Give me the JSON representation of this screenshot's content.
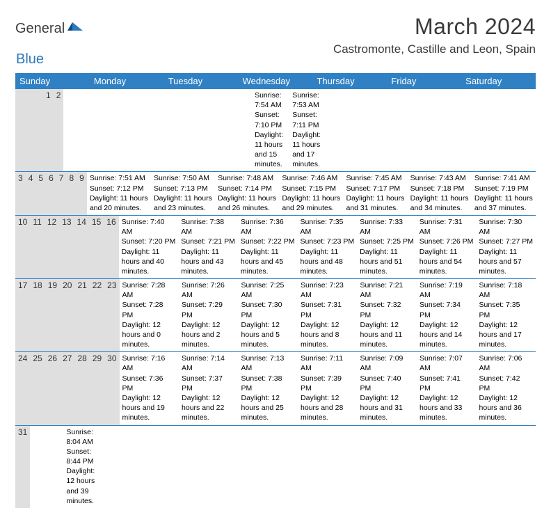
{
  "logo": {
    "text1": "General",
    "text2": "Blue"
  },
  "title": "March 2024",
  "location": "Castromonte, Castille and Leon, Spain",
  "colors": {
    "header_bg": "#3081c4",
    "header_text": "#ffffff",
    "daynum_bg": "#dfdfdf",
    "row_border": "#3081c4",
    "text": "#222222",
    "logo_gray": "#3d3d3d",
    "logo_blue": "#2f78b9"
  },
  "typography": {
    "title_fontsize": 32,
    "location_fontsize": 17,
    "dayheader_fontsize": 13,
    "daynum_fontsize": 12,
    "body_fontsize": 10.5
  },
  "day_names": [
    "Sunday",
    "Monday",
    "Tuesday",
    "Wednesday",
    "Thursday",
    "Friday",
    "Saturday"
  ],
  "weeks": [
    [
      {
        "n": "",
        "lines": []
      },
      {
        "n": "",
        "lines": []
      },
      {
        "n": "",
        "lines": []
      },
      {
        "n": "",
        "lines": []
      },
      {
        "n": "",
        "lines": []
      },
      {
        "n": "1",
        "lines": [
          "Sunrise: 7:54 AM",
          "Sunset: 7:10 PM",
          "Daylight: 11 hours and 15 minutes."
        ]
      },
      {
        "n": "2",
        "lines": [
          "Sunrise: 7:53 AM",
          "Sunset: 7:11 PM",
          "Daylight: 11 hours and 17 minutes."
        ]
      }
    ],
    [
      {
        "n": "3",
        "lines": [
          "Sunrise: 7:51 AM",
          "Sunset: 7:12 PM",
          "Daylight: 11 hours and 20 minutes."
        ]
      },
      {
        "n": "4",
        "lines": [
          "Sunrise: 7:50 AM",
          "Sunset: 7:13 PM",
          "Daylight: 11 hours and 23 minutes."
        ]
      },
      {
        "n": "5",
        "lines": [
          "Sunrise: 7:48 AM",
          "Sunset: 7:14 PM",
          "Daylight: 11 hours and 26 minutes."
        ]
      },
      {
        "n": "6",
        "lines": [
          "Sunrise: 7:46 AM",
          "Sunset: 7:15 PM",
          "Daylight: 11 hours and 29 minutes."
        ]
      },
      {
        "n": "7",
        "lines": [
          "Sunrise: 7:45 AM",
          "Sunset: 7:17 PM",
          "Daylight: 11 hours and 31 minutes."
        ]
      },
      {
        "n": "8",
        "lines": [
          "Sunrise: 7:43 AM",
          "Sunset: 7:18 PM",
          "Daylight: 11 hours and 34 minutes."
        ]
      },
      {
        "n": "9",
        "lines": [
          "Sunrise: 7:41 AM",
          "Sunset: 7:19 PM",
          "Daylight: 11 hours and 37 minutes."
        ]
      }
    ],
    [
      {
        "n": "10",
        "lines": [
          "Sunrise: 7:40 AM",
          "Sunset: 7:20 PM",
          "Daylight: 11 hours and 40 minutes."
        ]
      },
      {
        "n": "11",
        "lines": [
          "Sunrise: 7:38 AM",
          "Sunset: 7:21 PM",
          "Daylight: 11 hours and 43 minutes."
        ]
      },
      {
        "n": "12",
        "lines": [
          "Sunrise: 7:36 AM",
          "Sunset: 7:22 PM",
          "Daylight: 11 hours and 45 minutes."
        ]
      },
      {
        "n": "13",
        "lines": [
          "Sunrise: 7:35 AM",
          "Sunset: 7:23 PM",
          "Daylight: 11 hours and 48 minutes."
        ]
      },
      {
        "n": "14",
        "lines": [
          "Sunrise: 7:33 AM",
          "Sunset: 7:25 PM",
          "Daylight: 11 hours and 51 minutes."
        ]
      },
      {
        "n": "15",
        "lines": [
          "Sunrise: 7:31 AM",
          "Sunset: 7:26 PM",
          "Daylight: 11 hours and 54 minutes."
        ]
      },
      {
        "n": "16",
        "lines": [
          "Sunrise: 7:30 AM",
          "Sunset: 7:27 PM",
          "Daylight: 11 hours and 57 minutes."
        ]
      }
    ],
    [
      {
        "n": "17",
        "lines": [
          "Sunrise: 7:28 AM",
          "Sunset: 7:28 PM",
          "Daylight: 12 hours and 0 minutes."
        ]
      },
      {
        "n": "18",
        "lines": [
          "Sunrise: 7:26 AM",
          "Sunset: 7:29 PM",
          "Daylight: 12 hours and 2 minutes."
        ]
      },
      {
        "n": "19",
        "lines": [
          "Sunrise: 7:25 AM",
          "Sunset: 7:30 PM",
          "Daylight: 12 hours and 5 minutes."
        ]
      },
      {
        "n": "20",
        "lines": [
          "Sunrise: 7:23 AM",
          "Sunset: 7:31 PM",
          "Daylight: 12 hours and 8 minutes."
        ]
      },
      {
        "n": "21",
        "lines": [
          "Sunrise: 7:21 AM",
          "Sunset: 7:32 PM",
          "Daylight: 12 hours and 11 minutes."
        ]
      },
      {
        "n": "22",
        "lines": [
          "Sunrise: 7:19 AM",
          "Sunset: 7:34 PM",
          "Daylight: 12 hours and 14 minutes."
        ]
      },
      {
        "n": "23",
        "lines": [
          "Sunrise: 7:18 AM",
          "Sunset: 7:35 PM",
          "Daylight: 12 hours and 17 minutes."
        ]
      }
    ],
    [
      {
        "n": "24",
        "lines": [
          "Sunrise: 7:16 AM",
          "Sunset: 7:36 PM",
          "Daylight: 12 hours and 19 minutes."
        ]
      },
      {
        "n": "25",
        "lines": [
          "Sunrise: 7:14 AM",
          "Sunset: 7:37 PM",
          "Daylight: 12 hours and 22 minutes."
        ]
      },
      {
        "n": "26",
        "lines": [
          "Sunrise: 7:13 AM",
          "Sunset: 7:38 PM",
          "Daylight: 12 hours and 25 minutes."
        ]
      },
      {
        "n": "27",
        "lines": [
          "Sunrise: 7:11 AM",
          "Sunset: 7:39 PM",
          "Daylight: 12 hours and 28 minutes."
        ]
      },
      {
        "n": "28",
        "lines": [
          "Sunrise: 7:09 AM",
          "Sunset: 7:40 PM",
          "Daylight: 12 hours and 31 minutes."
        ]
      },
      {
        "n": "29",
        "lines": [
          "Sunrise: 7:07 AM",
          "Sunset: 7:41 PM",
          "Daylight: 12 hours and 33 minutes."
        ]
      },
      {
        "n": "30",
        "lines": [
          "Sunrise: 7:06 AM",
          "Sunset: 7:42 PM",
          "Daylight: 12 hours and 36 minutes."
        ]
      }
    ],
    [
      {
        "n": "31",
        "lines": [
          "Sunrise: 8:04 AM",
          "Sunset: 8:44 PM",
          "Daylight: 12 hours and 39 minutes."
        ]
      },
      {
        "n": "",
        "lines": []
      },
      {
        "n": "",
        "lines": []
      },
      {
        "n": "",
        "lines": []
      },
      {
        "n": "",
        "lines": []
      },
      {
        "n": "",
        "lines": []
      },
      {
        "n": "",
        "lines": []
      }
    ]
  ]
}
